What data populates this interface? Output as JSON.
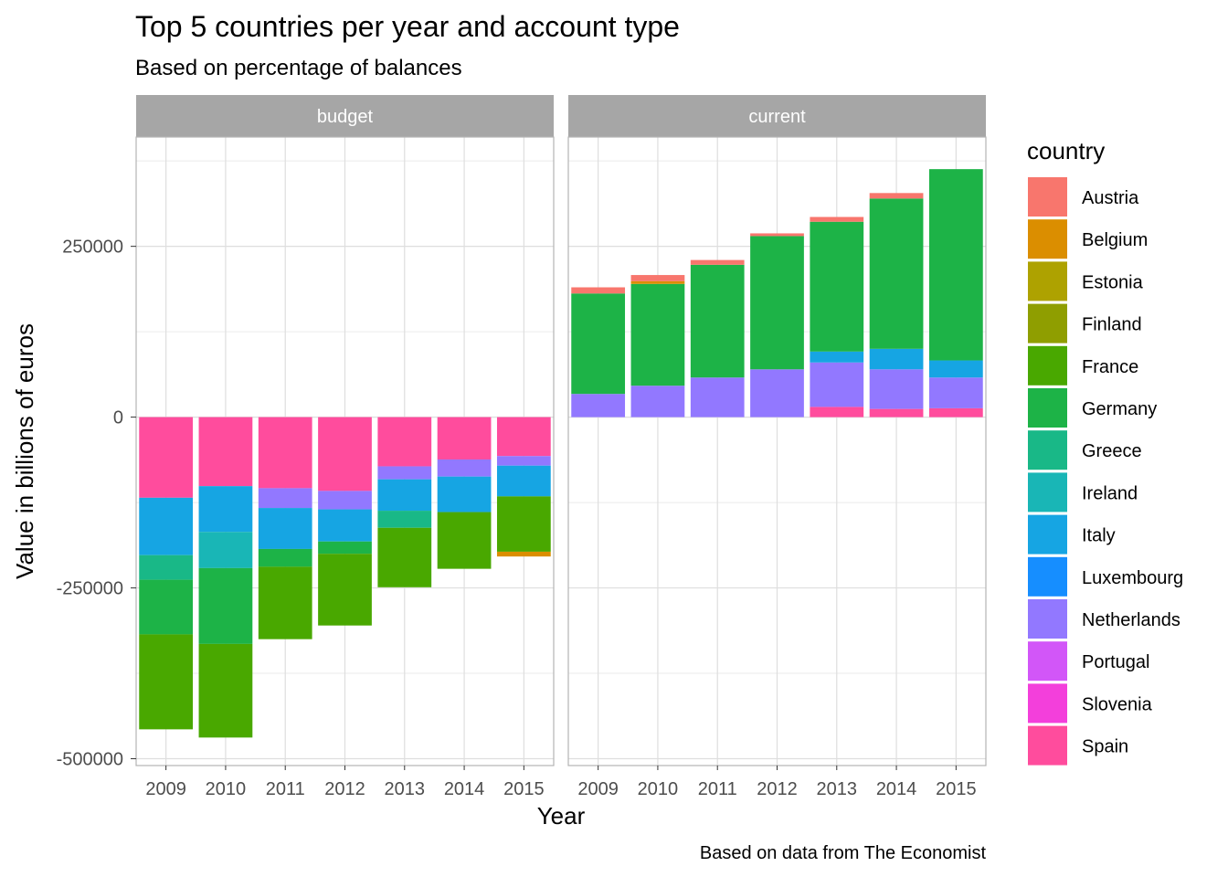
{
  "chart_data": {
    "type": "bar",
    "title": "Top 5 countries per year and account type",
    "subtitle": "Based on percentage of balances",
    "caption": "Based on data from The Economist",
    "xlabel": "Year",
    "ylabel": "Value in billions of euros",
    "ylim": [
      -510000,
      410000
    ],
    "yticks": [
      -500000,
      -250000,
      0,
      250000
    ],
    "ytick_labels": [
      "-500000",
      "-250000",
      "0",
      "250000"
    ],
    "grid": true,
    "legend": {
      "title": "country",
      "position": "right",
      "entries": [
        {
          "name": "Austria",
          "color": "#F8766D"
        },
        {
          "name": "Belgium",
          "color": "#DB8E00"
        },
        {
          "name": "Estonia",
          "color": "#AEA200"
        },
        {
          "name": "Finland",
          "color": "#8F9E00"
        },
        {
          "name": "France",
          "color": "#49A800"
        },
        {
          "name": "Germany",
          "color": "#1DB347"
        },
        {
          "name": "Greece",
          "color": "#19B887"
        },
        {
          "name": "Ireland",
          "color": "#19B6B6"
        },
        {
          "name": "Italy",
          "color": "#16A5E3"
        },
        {
          "name": "Luxembourg",
          "color": "#168EFF"
        },
        {
          "name": "Netherlands",
          "color": "#9278FF"
        },
        {
          "name": "Portugal",
          "color": "#D256F8"
        },
        {
          "name": "Slovenia",
          "color": "#F33FDB"
        },
        {
          "name": "Spain",
          "color": "#FF4C9D"
        }
      ]
    },
    "categories": [
      "2009",
      "2010",
      "2011",
      "2012",
      "2013",
      "2014",
      "2015"
    ],
    "panels": [
      {
        "name": "budget",
        "stacks": [
          [
            {
              "country": "Spain",
              "value": -118000
            },
            {
              "country": "Italy",
              "value": -84000
            },
            {
              "country": "Greece",
              "value": -36000
            },
            {
              "country": "Germany",
              "value": -80000
            },
            {
              "country": "France",
              "value": -139000
            }
          ],
          [
            {
              "country": "Spain",
              "value": -101000
            },
            {
              "country": "Italy",
              "value": -67000
            },
            {
              "country": "Ireland",
              "value": -53000
            },
            {
              "country": "Germany",
              "value": -111000
            },
            {
              "country": "France",
              "value": -137000
            }
          ],
          [
            {
              "country": "Spain",
              "value": -104000
            },
            {
              "country": "Netherlands",
              "value": -29000
            },
            {
              "country": "Italy",
              "value": -60000
            },
            {
              "country": "Germany",
              "value": -26000
            },
            {
              "country": "France",
              "value": -106000
            }
          ],
          [
            {
              "country": "Spain",
              "value": -108000
            },
            {
              "country": "Netherlands",
              "value": -27000
            },
            {
              "country": "Italy",
              "value": -47000
            },
            {
              "country": "Germany",
              "value": -18000
            },
            {
              "country": "France",
              "value": -105000
            }
          ],
          [
            {
              "country": "Spain",
              "value": -72000
            },
            {
              "country": "Netherlands",
              "value": -19000
            },
            {
              "country": "Italy",
              "value": -46000
            },
            {
              "country": "Greece",
              "value": -25000
            },
            {
              "country": "France",
              "value": -87000
            }
          ],
          [
            {
              "country": "Spain",
              "value": -62000
            },
            {
              "country": "Netherlands",
              "value": -25000
            },
            {
              "country": "Italy",
              "value": -52000
            },
            {
              "country": "France",
              "value": -83000
            }
          ],
          [
            {
              "country": "Spain",
              "value": -57000
            },
            {
              "country": "Netherlands",
              "value": -14000
            },
            {
              "country": "Italy",
              "value": -45000
            },
            {
              "country": "France",
              "value": -81000
            },
            {
              "country": "Belgium",
              "value": -7000
            }
          ]
        ]
      },
      {
        "name": "current",
        "stacks": [
          [
            {
              "country": "Netherlands",
              "value": 34000
            },
            {
              "country": "Germany",
              "value": 147000
            },
            {
              "country": "Austria",
              "value": 9000
            }
          ],
          [
            {
              "country": "Netherlands",
              "value": 46000
            },
            {
              "country": "Germany",
              "value": 149000
            },
            {
              "country": "Belgium",
              "value": 4000
            },
            {
              "country": "Austria",
              "value": 9000
            }
          ],
          [
            {
              "country": "Netherlands",
              "value": 58000
            },
            {
              "country": "Germany",
              "value": 165000
            },
            {
              "country": "Austria",
              "value": 7000
            }
          ],
          [
            {
              "country": "Netherlands",
              "value": 70000
            },
            {
              "country": "Germany",
              "value": 195000
            },
            {
              "country": "Austria",
              "value": 4000
            }
          ],
          [
            {
              "country": "Spain",
              "value": 15000
            },
            {
              "country": "Netherlands",
              "value": 65000
            },
            {
              "country": "Italy",
              "value": 16000
            },
            {
              "country": "Germany",
              "value": 190000
            },
            {
              "country": "Austria",
              "value": 7000
            }
          ],
          [
            {
              "country": "Spain",
              "value": 12000
            },
            {
              "country": "Netherlands",
              "value": 58000
            },
            {
              "country": "Italy",
              "value": 30000
            },
            {
              "country": "Germany",
              "value": 220000
            },
            {
              "country": "Austria",
              "value": 8000
            }
          ],
          [
            {
              "country": "Spain",
              "value": 13000
            },
            {
              "country": "Netherlands",
              "value": 45000
            },
            {
              "country": "Italy",
              "value": 25000
            },
            {
              "country": "Germany",
              "value": 280000
            }
          ]
        ]
      }
    ]
  }
}
